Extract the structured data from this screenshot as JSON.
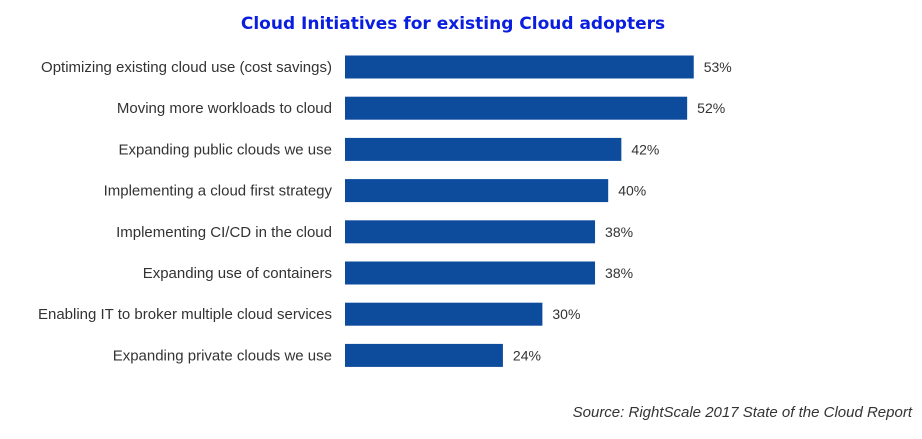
{
  "chart_data": {
    "type": "bar",
    "orientation": "horizontal",
    "title": "Cloud Initiatives for existing Cloud adopters",
    "categories": [
      "Optimizing existing cloud use (cost savings)",
      "Moving more workloads to cloud",
      "Expanding public clouds we use",
      "Implementing a cloud first strategy",
      "Implementing CI/CD in the cloud",
      "Expanding use of containers",
      "Enabling IT to broker multiple cloud services",
      "Expanding private clouds we use"
    ],
    "values": [
      53,
      52,
      42,
      40,
      38,
      38,
      30,
      24
    ],
    "value_labels": [
      "53%",
      "52%",
      "42%",
      "40%",
      "38%",
      "38%",
      "30%",
      "24%"
    ],
    "xlim": [
      0,
      100
    ],
    "grid": false,
    "legend": "none",
    "colors": {
      "bar": "#0d4b9c",
      "title": "#0a1ee0",
      "label": "#333333"
    }
  },
  "source": "Source: RightScale 2017 State of the Cloud Report"
}
